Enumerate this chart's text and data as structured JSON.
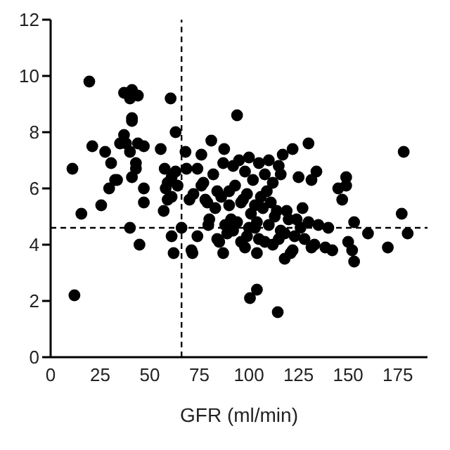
{
  "chart_data": {
    "type": "scatter",
    "xlabel": "GFR (ml/min)",
    "xlim": [
      0,
      190
    ],
    "xticks": [
      0,
      25,
      50,
      75,
      100,
      125,
      150,
      175
    ],
    "ylim": [
      0,
      12
    ],
    "yticks": [
      0,
      2,
      4,
      6,
      8,
      10,
      12
    ],
    "grid": false,
    "marker": "circle",
    "ref_lines": [
      {
        "axis": "x",
        "value": 66,
        "line_style": "dashed",
        "color": "#000000"
      },
      {
        "axis": "y",
        "value": 4.6,
        "line_style": "dashed",
        "color": "#000000"
      }
    ],
    "series": [
      {
        "color": "#000000",
        "x": [
          19.5,
          37,
          41,
          44,
          40,
          41,
          41,
          60.5,
          63,
          11,
          21,
          27.5,
          30.5,
          32.5,
          33.5,
          29.5,
          25.5,
          15.5,
          37,
          35,
          38,
          40,
          44,
          47,
          43,
          43,
          41,
          47,
          47,
          55.5,
          57.5,
          59,
          61,
          63,
          58,
          59,
          61,
          64,
          57,
          68,
          68.5,
          74,
          76,
          81,
          87.5,
          70,
          72,
          76,
          78,
          82,
          84,
          87,
          94,
          122,
          130,
          117,
          178,
          116,
          125,
          134,
          149,
          149,
          145,
          147,
          131.5,
          177,
          40,
          44.8,
          12,
          61,
          62,
          66,
          71,
          71.5,
          74,
          79.5,
          85,
          87,
          100.5,
          104,
          114.5,
          160,
          180,
          170,
          153,
          152,
          150,
          142,
          138.5,
          131.5,
          118,
          121,
          104,
          153,
          92,
          95,
          98,
          100,
          102,
          105,
          108,
          110,
          112,
          115,
          90,
          93,
          97,
          99,
          103,
          106,
          109,
          111,
          114,
          96,
          101,
          107,
          113,
          119,
          124,
          127,
          88,
          91,
          94,
          100,
          104,
          110,
          116,
          120,
          126,
          130,
          135,
          140,
          84,
          89,
          96,
          99,
          105,
          112,
          118,
          123,
          128,
          133,
          92,
          98,
          103,
          108,
          115,
          122,
          80,
          83,
          86,
          90,
          77,
          79
        ],
        "values": [
          9.8,
          9.4,
          9.5,
          9.3,
          9.2,
          8.5,
          8.4,
          9.2,
          8,
          6.7,
          7.5,
          7.3,
          6.9,
          6.3,
          6.3,
          6,
          5.4,
          5.1,
          7.9,
          7.6,
          7.6,
          7.3,
          7.6,
          7.5,
          6.9,
          6.7,
          6.4,
          6,
          5.5,
          7.4,
          6.7,
          6.2,
          6.4,
          6.6,
          6,
          5.6,
          5.7,
          6.1,
          5.2,
          7.3,
          6.7,
          6.7,
          7.2,
          7.7,
          7.4,
          5.6,
          5.8,
          6.1,
          5.6,
          6.5,
          5.9,
          6.9,
          8.6,
          7.4,
          7.6,
          7.2,
          7.3,
          6.5,
          6.4,
          6.6,
          6.4,
          6.1,
          6,
          5.6,
          6.3,
          5.1,
          4.6,
          4,
          2.2,
          4.3,
          3.7,
          4.6,
          3.8,
          3.7,
          4.3,
          4.7,
          4.1,
          3.7,
          2.1,
          2.4,
          1.6,
          4.4,
          4.4,
          3.9,
          3.4,
          3.8,
          4.1,
          3.8,
          3.9,
          3.9,
          3.5,
          3.7,
          3.7,
          4.8,
          6.8,
          7,
          6.6,
          7.1,
          6.3,
          6.9,
          6.5,
          7,
          6.2,
          6.8,
          5.9,
          6.1,
          5.6,
          5.8,
          5.4,
          5.7,
          5.9,
          5.5,
          5.2,
          5.5,
          5.1,
          5.3,
          5,
          5.2,
          4.9,
          5.3,
          4.7,
          4.9,
          4.8,
          4.6,
          4.8,
          4.7,
          4.5,
          4.9,
          4.6,
          4.8,
          4.7,
          4.6,
          4.2,
          4.4,
          4.1,
          4.3,
          4.2,
          4,
          4.4,
          4.3,
          4.2,
          4,
          4.5,
          3.9,
          4.6,
          4.1,
          4.2,
          3.8,
          4.9,
          5.3,
          5.7,
          5.4,
          6.2,
          5.5
        ]
      }
    ]
  }
}
